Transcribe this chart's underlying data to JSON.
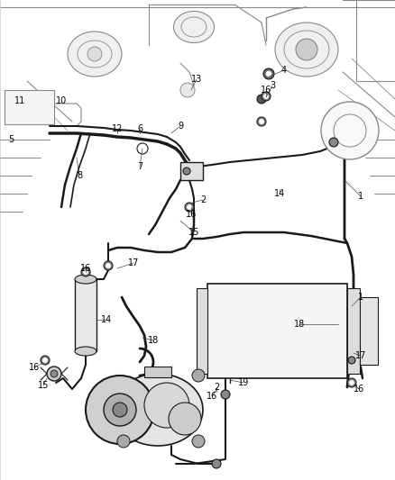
{
  "bg_color": "#ffffff",
  "line_color": "#1a1a1a",
  "sketch_color": "#888888",
  "figsize": [
    4.38,
    5.33
  ],
  "dpi": 100,
  "label_fs": 6.5
}
